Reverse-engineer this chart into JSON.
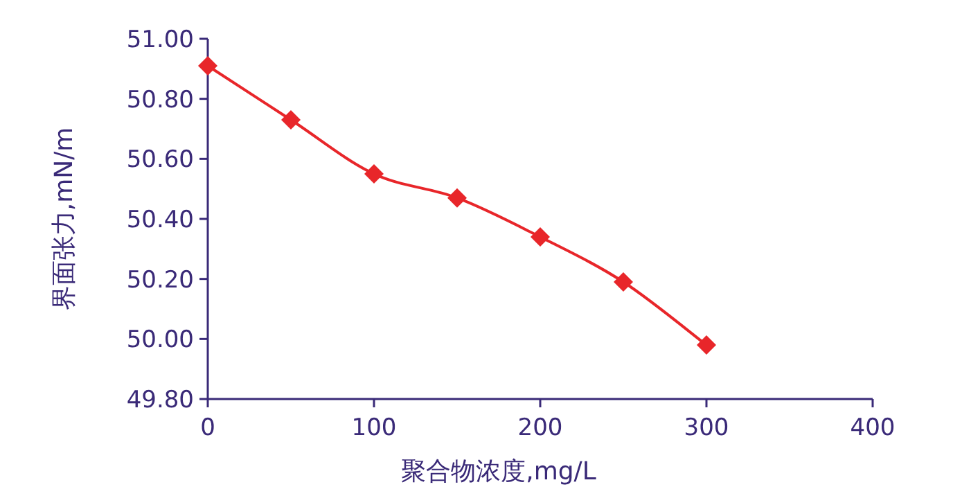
{
  "chart_data": {
    "type": "line",
    "xlabel": "聚合物浓度,mg/L",
    "ylabel": "界面张力,mN/m",
    "x": [
      0,
      50,
      100,
      150,
      200,
      250,
      300
    ],
    "series": [
      {
        "color": "#e8262a",
        "values": [
          50.91,
          50.73,
          50.55,
          50.47,
          50.34,
          50.19,
          49.98
        ]
      }
    ],
    "xlim": [
      0,
      400
    ],
    "xticks": [
      0,
      100,
      200,
      300,
      400
    ],
    "ylim": [
      49.8,
      51.0
    ],
    "yticks": [
      {
        "value": 49.8,
        "label": "49.80"
      },
      {
        "value": 50.0,
        "label": "50.00"
      },
      {
        "value": 50.2,
        "label": "50.20"
      },
      {
        "value": 50.4,
        "label": "50.40"
      },
      {
        "value": 50.6,
        "label": "50.60"
      },
      {
        "value": 50.8,
        "label": "50.80"
      },
      {
        "value": 51.0,
        "label": "51.00"
      }
    ],
    "marker": "diamond",
    "grid": false
  }
}
